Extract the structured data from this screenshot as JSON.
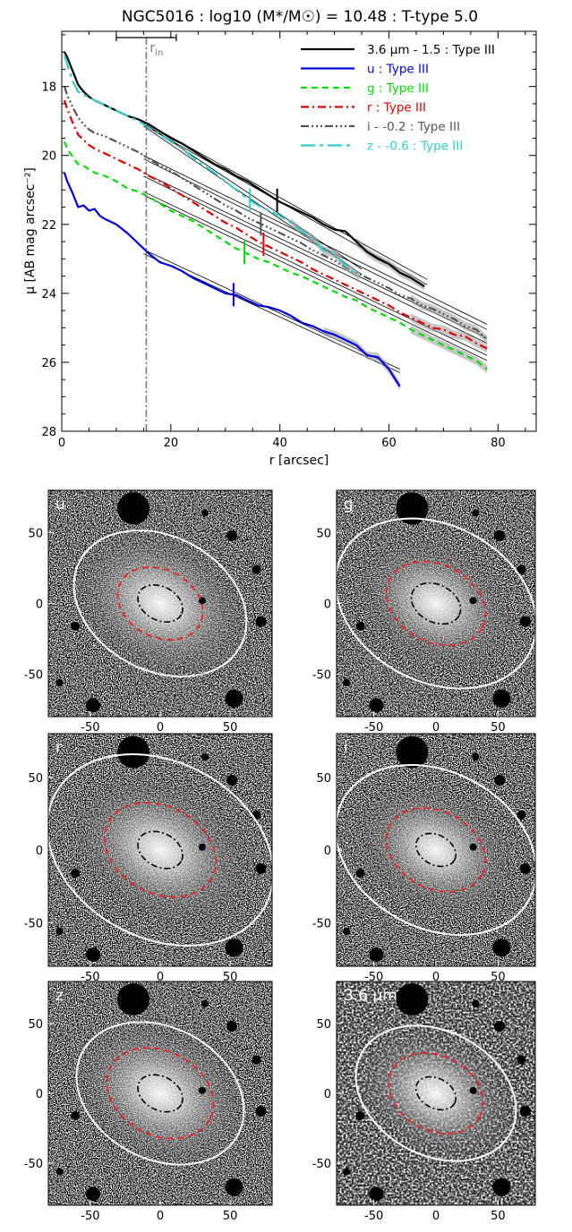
{
  "chart_data": [
    {
      "type": "line",
      "title": "NGC5016 : log10 (M*/M☉) = 10.48 : T-type 5.0",
      "xlabel": "r [arcsec]",
      "ylabel": "μ [AB mag arcsec⁻²]",
      "xlim": [
        0,
        87
      ],
      "ylim": [
        28,
        16.4
      ],
      "y_inverted": true,
      "xticks": [
        "0",
        "20",
        "40",
        "60",
        "80"
      ],
      "yticks": [
        "18",
        "20",
        "22",
        "24",
        "26",
        "28"
      ],
      "r_in": 15.5,
      "r_in_label": "rin",
      "r_in_errorbar": [
        10,
        21
      ],
      "series": [
        {
          "name": "3.6 μm - 1.5 : Type III",
          "color": "#000000",
          "dash": "",
          "x": [
            0.5,
            1,
            2,
            3,
            4,
            5,
            6,
            8,
            10,
            12,
            14,
            16,
            18,
            20,
            22,
            24,
            26,
            28,
            30,
            32,
            34,
            36,
            38,
            40,
            42,
            44,
            46,
            48,
            50,
            52,
            54,
            56,
            58,
            60,
            62,
            64,
            66.5
          ],
          "y": [
            17.0,
            17.15,
            17.55,
            17.95,
            18.15,
            18.3,
            18.4,
            18.55,
            18.7,
            18.85,
            18.95,
            19.1,
            19.3,
            19.5,
            19.65,
            19.85,
            20.05,
            20.25,
            20.4,
            20.6,
            20.75,
            20.95,
            21.15,
            21.35,
            21.5,
            21.65,
            21.8,
            22.0,
            22.15,
            22.2,
            22.5,
            22.8,
            23.0,
            23.15,
            23.4,
            23.55,
            23.8
          ],
          "break_r": 39.5,
          "fits": [
            {
              "x": [
                15,
                67
              ],
              "y": [
                19.02,
                23.6
              ]
            },
            {
              "x": [
                15,
                67
              ],
              "y": [
                19.12,
                23.75
              ]
            }
          ]
        },
        {
          "name": "u : Type III",
          "color": "#0000dd",
          "dash": "",
          "x": [
            0.5,
            1,
            2,
            3,
            4,
            5,
            6,
            7,
            8,
            10,
            12,
            14,
            16,
            18,
            20,
            22,
            24,
            26,
            28,
            30,
            32,
            34,
            36,
            38,
            40,
            42,
            44,
            46,
            48,
            50,
            52,
            54,
            56,
            58,
            60,
            62
          ],
          "y": [
            20.5,
            20.75,
            21.1,
            21.5,
            21.45,
            21.6,
            21.55,
            21.75,
            21.85,
            22.0,
            22.25,
            22.55,
            22.85,
            23.1,
            23.2,
            23.35,
            23.55,
            23.7,
            23.85,
            24.0,
            24.05,
            24.2,
            24.35,
            24.4,
            24.5,
            24.65,
            24.85,
            24.95,
            25.1,
            25.2,
            25.35,
            25.5,
            25.8,
            25.85,
            26.2,
            26.7
          ],
          "break_r": 31.5,
          "fits": [
            {
              "x": [
                15,
                62
              ],
              "y": [
                22.73,
                26.2
              ]
            },
            {
              "x": [
                15,
                62
              ],
              "y": [
                22.85,
                26.3
              ]
            }
          ]
        },
        {
          "name": "g : Type III",
          "color": "#00dd00",
          "dash": "7,5",
          "x": [
            0.5,
            1,
            2,
            3,
            4,
            5,
            6,
            8,
            10,
            12,
            14,
            16,
            18,
            20,
            22,
            24,
            26,
            28,
            30,
            32,
            34,
            36,
            38,
            40,
            42,
            44,
            46,
            48,
            50,
            52,
            54,
            56,
            58,
            60,
            62,
            64,
            66,
            68,
            70,
            72,
            74,
            76,
            78
          ],
          "y": [
            19.6,
            19.8,
            20.05,
            20.25,
            20.3,
            20.4,
            20.5,
            20.6,
            20.75,
            20.95,
            21.05,
            21.2,
            21.4,
            21.6,
            21.75,
            21.9,
            22.1,
            22.3,
            22.5,
            22.7,
            22.85,
            23.0,
            23.1,
            23.25,
            23.4,
            23.5,
            23.65,
            23.8,
            23.95,
            24.1,
            24.2,
            24.4,
            24.55,
            24.7,
            24.85,
            25.05,
            25.2,
            25.35,
            25.5,
            25.65,
            25.8,
            25.95,
            26.2
          ],
          "break_r": 33.5,
          "fits": [
            {
              "x": [
                15,
                78
              ],
              "y": [
                21.05,
                25.8
              ]
            },
            {
              "x": [
                15,
                78
              ],
              "y": [
                21.15,
                25.95
              ]
            }
          ]
        },
        {
          "name": "r : Type III",
          "color": "#dd0000",
          "dash": "9,4,2,4",
          "x": [
            0.5,
            1,
            2,
            3,
            4,
            5,
            6,
            8,
            10,
            12,
            14,
            16,
            18,
            20,
            22,
            24,
            26,
            28,
            30,
            32,
            34,
            36,
            38,
            40,
            42,
            44,
            46,
            48,
            50,
            52,
            54,
            56,
            58,
            60,
            62,
            64,
            66,
            68,
            70,
            72,
            74,
            76,
            78
          ],
          "y": [
            18.4,
            18.65,
            19.05,
            19.4,
            19.55,
            19.7,
            19.8,
            19.95,
            20.1,
            20.25,
            20.4,
            20.6,
            20.75,
            20.95,
            21.15,
            21.35,
            21.55,
            21.75,
            21.95,
            22.1,
            22.3,
            22.5,
            22.65,
            22.8,
            22.95,
            23.1,
            23.3,
            23.45,
            23.6,
            23.75,
            23.9,
            24.05,
            24.2,
            24.35,
            24.55,
            24.7,
            24.85,
            25.0,
            25.05,
            25.2,
            25.25,
            25.45,
            25.6
          ],
          "break_r": 37,
          "fits": [
            {
              "x": [
                15,
                78
              ],
              "y": [
                20.5,
                25.3
              ]
            },
            {
              "x": [
                15,
                78
              ],
              "y": [
                20.6,
                25.45
              ]
            }
          ]
        },
        {
          "name": "i - -0.2 : Type III",
          "color": "#555555",
          "dash": "9,3,2,3,2,3,2,3",
          "x": [
            0.5,
            1,
            2,
            3,
            4,
            5,
            6,
            8,
            10,
            12,
            14,
            16,
            18,
            20,
            22,
            24,
            26,
            28,
            30,
            32,
            34,
            36,
            38,
            40,
            42,
            44,
            46,
            48,
            50,
            52,
            54,
            56,
            58,
            60,
            62,
            64,
            66,
            68,
            70,
            72,
            74,
            76,
            78
          ],
          "y": [
            18.0,
            18.25,
            18.6,
            18.9,
            19.1,
            19.25,
            19.35,
            19.45,
            19.6,
            19.75,
            19.9,
            20.1,
            20.3,
            20.45,
            20.65,
            20.85,
            21.05,
            21.25,
            21.45,
            21.6,
            21.8,
            21.95,
            22.1,
            22.25,
            22.4,
            22.55,
            22.75,
            22.9,
            23.05,
            23.25,
            23.4,
            23.55,
            23.7,
            23.85,
            24.05,
            24.15,
            24.35,
            24.45,
            24.6,
            24.75,
            24.95,
            25.05,
            25.35
          ],
          "break_r": 36.5,
          "fits": [
            {
              "x": [
                15,
                78
              ],
              "y": [
                20.0,
                24.9
              ]
            },
            {
              "x": [
                15,
                78
              ],
              "y": [
                20.1,
                25.05
              ]
            }
          ]
        },
        {
          "name": "z - -0.6 : Type III",
          "color": "#33cccc",
          "dash": "16,5,4,5",
          "x": [
            0.5,
            1,
            2,
            3,
            4,
            5,
            6,
            8,
            10,
            12,
            14,
            16,
            18,
            20,
            22,
            24,
            26,
            28,
            30,
            32,
            34,
            36,
            38,
            40,
            42,
            44,
            46,
            48,
            50,
            52,
            54.5
          ],
          "y": [
            17.1,
            17.35,
            17.85,
            18.15,
            18.25,
            18.3,
            18.4,
            18.55,
            18.7,
            18.85,
            19.0,
            19.2,
            19.4,
            19.6,
            19.8,
            20.05,
            20.3,
            20.5,
            20.75,
            21.0,
            21.25,
            21.45,
            21.6,
            21.75,
            21.95,
            22.2,
            22.4,
            22.75,
            22.85,
            23.2,
            23.5
          ],
          "break_r": 34.5,
          "fits": [
            {
              "x": [
                15,
                55
              ],
              "y": [
                19.05,
                23.3
              ]
            },
            {
              "x": [
                15,
                55
              ],
              "y": [
                19.15,
                23.45
              ]
            }
          ]
        }
      ]
    },
    {
      "type": "image-grid",
      "xlim": [
        -80,
        80
      ],
      "ylim": [
        -80,
        80
      ],
      "xticks": [
        "-50",
        "0",
        "50"
      ],
      "yticks": [
        "50",
        "0",
        "-50"
      ],
      "panels": [
        {
          "label": "u",
          "ell_white": {
            "a": 65,
            "b": 48
          },
          "ell_red": {
            "a": 32,
            "b": 24
          },
          "ell_black": {
            "a": 17,
            "b": 12
          }
        },
        {
          "label": "g",
          "ell_white": {
            "a": 85,
            "b": 63
          },
          "ell_red": {
            "a": 42,
            "b": 31
          },
          "ell_black": {
            "a": 21,
            "b": 15
          }
        },
        {
          "label": "r",
          "ell_white": {
            "a": 85,
            "b": 63
          },
          "ell_red": {
            "a": 42,
            "b": 31
          },
          "ell_black": {
            "a": 17,
            "b": 12
          }
        },
        {
          "label": "i",
          "ell_white": {
            "a": 85,
            "b": 63
          },
          "ell_red": {
            "a": 42,
            "b": 31
          },
          "ell_black": {
            "a": 17,
            "b": 12
          }
        },
        {
          "label": "z",
          "ell_white": {
            "a": 63,
            "b": 47
          },
          "ell_red": {
            "a": 40,
            "b": 30
          },
          "ell_black": {
            "a": 17,
            "b": 12
          }
        },
        {
          "label": "3.6 μm",
          "ell_white": {
            "a": 68,
            "b": 50
          },
          "ell_red": {
            "a": 40,
            "b": 30
          },
          "ell_black": {
            "a": 17,
            "b": 12
          }
        }
      ]
    }
  ]
}
